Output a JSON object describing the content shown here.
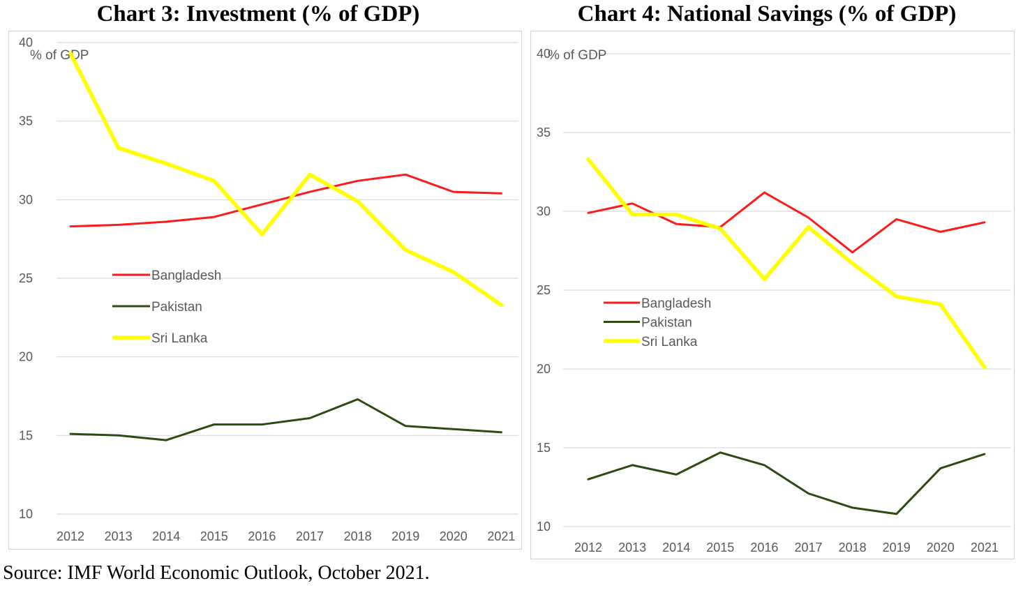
{
  "source": "Source: IMF World Economic Outlook, October 2021.",
  "colors": {
    "Bangladesh": "#ff1a1a",
    "Pakistan": "#2d4a12",
    "Sri Lanka": "#ffff00",
    "grid": "#d9d9d9",
    "text": "#595959"
  },
  "chart_data": [
    {
      "type": "line",
      "title": "Chart 3: Investment (% of GDP)",
      "unit_label": "% of GDP",
      "ylabel": "",
      "xlabel": "",
      "ylim": [
        10,
        40
      ],
      "yticks": [
        10,
        15,
        20,
        25,
        30,
        35,
        40
      ],
      "grid": true,
      "legend_position": "center-left",
      "categories": [
        "2012",
        "2013",
        "2014",
        "2015",
        "2016",
        "2017",
        "2018",
        "2019",
        "2020",
        "2021"
      ],
      "series": [
        {
          "name": "Bangladesh",
          "values": [
            28.3,
            28.4,
            28.6,
            28.9,
            29.7,
            30.5,
            31.2,
            31.6,
            30.5,
            30.4
          ]
        },
        {
          "name": "Pakistan",
          "values": [
            15.1,
            15.0,
            14.7,
            15.7,
            15.7,
            16.1,
            17.3,
            15.6,
            15.4,
            15.2
          ]
        },
        {
          "name": "Sri Lanka",
          "values": [
            39.3,
            33.3,
            32.3,
            31.2,
            27.8,
            31.6,
            29.9,
            26.8,
            25.4,
            23.3
          ]
        }
      ]
    },
    {
      "type": "line",
      "title": "Chart 4: National Savings (% of GDP)",
      "unit_label": "% of GDP",
      "ylabel": "",
      "xlabel": "",
      "ylim": [
        10,
        40
      ],
      "yticks": [
        10,
        15,
        20,
        25,
        30,
        35,
        40
      ],
      "grid": true,
      "legend_position": "center-left",
      "categories": [
        "2012",
        "2013",
        "2014",
        "2015",
        "2016",
        "2017",
        "2018",
        "2019",
        "2020",
        "2021"
      ],
      "series": [
        {
          "name": "Bangladesh",
          "values": [
            29.9,
            30.5,
            29.2,
            29.0,
            31.2,
            29.6,
            27.4,
            29.5,
            28.7,
            29.3
          ]
        },
        {
          "name": "Pakistan",
          "values": [
            13.0,
            13.9,
            13.3,
            14.7,
            13.9,
            12.1,
            11.2,
            10.8,
            13.7,
            14.6
          ]
        },
        {
          "name": "Sri Lanka",
          "values": [
            33.3,
            29.8,
            29.8,
            28.9,
            25.7,
            29.0,
            26.7,
            24.6,
            24.1,
            20.1
          ]
        }
      ]
    }
  ]
}
